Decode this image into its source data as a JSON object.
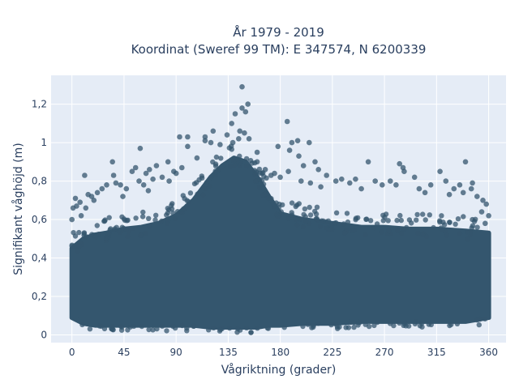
{
  "chart_data": {
    "type": "scatter",
    "title_line1": "År 1979 - 2019",
    "title_line2": "Koordinat (Sweref 99 TM): E 347574, N 6200339",
    "xlabel": "Vågriktning (grader)",
    "ylabel": "Signifikant våghöjd (m)",
    "xlim": [
      -18,
      375
    ],
    "ylim": [
      -0.04,
      1.35
    ],
    "x_ticks": [
      0,
      45,
      90,
      135,
      180,
      225,
      270,
      315,
      360
    ],
    "x_tick_labels": [
      "0",
      "45",
      "90",
      "135",
      "180",
      "225",
      "270",
      "315",
      "360"
    ],
    "y_ticks": [
      0,
      0.2,
      0.4,
      0.6,
      0.8,
      1.0,
      1.2
    ],
    "y_tick_labels": [
      "0",
      "0,2",
      "0,4",
      "0,6",
      "0,8",
      "1",
      "1,2"
    ],
    "grid": true,
    "marker_color": "#34566e",
    "marker_opacity": 0.75,
    "background_color": "#e5ecf6",
    "envelope": {
      "x": [
        0,
        10,
        20,
        30,
        45,
        60,
        75,
        90,
        105,
        120,
        130,
        140,
        150,
        160,
        170,
        180,
        200,
        225,
        250,
        270,
        290,
        315,
        340,
        360
      ],
      "y_min": [
        0.09,
        0.06,
        0.05,
        0.05,
        0.05,
        0.05,
        0.05,
        0.05,
        0.05,
        0.04,
        0.04,
        0.04,
        0.04,
        0.04,
        0.05,
        0.05,
        0.06,
        0.06,
        0.07,
        0.07,
        0.07,
        0.07,
        0.07,
        0.09
      ],
      "y_dense_top": [
        0.45,
        0.5,
        0.52,
        0.53,
        0.55,
        0.56,
        0.58,
        0.62,
        0.7,
        0.82,
        0.88,
        0.92,
        0.9,
        0.82,
        0.72,
        0.63,
        0.6,
        0.58,
        0.56,
        0.56,
        0.55,
        0.55,
        0.54,
        0.53
      ]
    },
    "points": [
      {
        "x": 147,
        "y": 1.29
      },
      {
        "x": 152,
        "y": 1.2
      },
      {
        "x": 147,
        "y": 1.18
      },
      {
        "x": 150,
        "y": 1.16
      },
      {
        "x": 141,
        "y": 1.15
      },
      {
        "x": 138,
        "y": 1.1
      },
      {
        "x": 186,
        "y": 1.11
      },
      {
        "x": 122,
        "y": 1.06
      },
      {
        "x": 145,
        "y": 1.06
      },
      {
        "x": 149,
        "y": 1.05
      },
      {
        "x": 100,
        "y": 1.03
      },
      {
        "x": 115,
        "y": 1.03
      },
      {
        "x": 144,
        "y": 1.02
      },
      {
        "x": 134,
        "y": 1.04
      },
      {
        "x": 139,
        "y": 1.0
      },
      {
        "x": 153,
        "y": 1.02
      },
      {
        "x": 190,
        "y": 1.0
      },
      {
        "x": 205,
        "y": 1.0
      },
      {
        "x": 178,
        "y": 0.98
      },
      {
        "x": 195,
        "y": 1.01
      },
      {
        "x": 115,
        "y": 1.01
      },
      {
        "x": 120,
        "y": 1.0
      },
      {
        "x": 128,
        "y": 0.99
      },
      {
        "x": 93,
        "y": 1.03
      },
      {
        "x": 100,
        "y": 0.98
      },
      {
        "x": 59,
        "y": 0.97
      },
      {
        "x": 160,
        "y": 0.95
      },
      {
        "x": 188,
        "y": 0.96
      },
      {
        "x": 196,
        "y": 0.93
      },
      {
        "x": 210,
        "y": 0.9
      },
      {
        "x": 256,
        "y": 0.9
      },
      {
        "x": 340,
        "y": 0.9
      },
      {
        "x": 35,
        "y": 0.9
      },
      {
        "x": 73,
        "y": 0.88
      },
      {
        "x": 83,
        "y": 0.9
      },
      {
        "x": 108,
        "y": 0.92
      },
      {
        "x": 200,
        "y": 0.88
      },
      {
        "x": 187,
        "y": 0.85
      },
      {
        "x": 175,
        "y": 0.84
      },
      {
        "x": 213,
        "y": 0.86
      },
      {
        "x": 283,
        "y": 0.89
      },
      {
        "x": 286,
        "y": 0.87
      },
      {
        "x": 287,
        "y": 0.85
      },
      {
        "x": 296,
        "y": 0.82
      },
      {
        "x": 318,
        "y": 0.85
      },
      {
        "x": 323,
        "y": 0.8
      },
      {
        "x": 11,
        "y": 0.83
      },
      {
        "x": 36,
        "y": 0.83
      },
      {
        "x": 64,
        "y": 0.84
      },
      {
        "x": 67,
        "y": 0.86
      },
      {
        "x": 55,
        "y": 0.87
      },
      {
        "x": 52,
        "y": 0.85
      },
      {
        "x": 38,
        "y": 0.79
      },
      {
        "x": 26,
        "y": 0.76
      },
      {
        "x": 22,
        "y": 0.74
      },
      {
        "x": 17,
        "y": 0.72
      },
      {
        "x": 3,
        "y": 0.71
      },
      {
        "x": 7,
        "y": 0.69
      },
      {
        "x": 4,
        "y": 0.67
      },
      {
        "x": 14,
        "y": 0.73
      },
      {
        "x": 30,
        "y": 0.78
      },
      {
        "x": 47,
        "y": 0.76
      },
      {
        "x": 58,
        "y": 0.8
      },
      {
        "x": 70,
        "y": 0.81
      },
      {
        "x": 78,
        "y": 0.82
      },
      {
        "x": 88,
        "y": 0.85
      },
      {
        "x": 95,
        "y": 0.87
      },
      {
        "x": 160,
        "y": 0.9
      },
      {
        "x": 167,
        "y": 0.86
      },
      {
        "x": 172,
        "y": 0.83
      },
      {
        "x": 180,
        "y": 0.82
      },
      {
        "x": 220,
        "y": 0.83
      },
      {
        "x": 228,
        "y": 0.8
      },
      {
        "x": 233,
        "y": 0.81
      },
      {
        "x": 240,
        "y": 0.79
      },
      {
        "x": 245,
        "y": 0.81
      },
      {
        "x": 262,
        "y": 0.8
      },
      {
        "x": 268,
        "y": 0.78
      },
      {
        "x": 275,
        "y": 0.8
      },
      {
        "x": 280,
        "y": 0.78
      },
      {
        "x": 300,
        "y": 0.76
      },
      {
        "x": 310,
        "y": 0.78
      },
      {
        "x": 330,
        "y": 0.76
      },
      {
        "x": 335,
        "y": 0.78
      },
      {
        "x": 345,
        "y": 0.76
      },
      {
        "x": 350,
        "y": 0.72
      },
      {
        "x": 355,
        "y": 0.7
      },
      {
        "x": 358,
        "y": 0.68
      },
      {
        "x": 346,
        "y": 0.79
      },
      {
        "x": 338,
        "y": 0.74
      },
      {
        "x": 326,
        "y": 0.73
      },
      {
        "x": 305,
        "y": 0.74
      },
      {
        "x": 250,
        "y": 0.76
      },
      {
        "x": 215,
        "y": 0.77
      },
      {
        "x": 206,
        "y": 0.79
      },
      {
        "x": 198,
        "y": 0.8
      },
      {
        "x": 0,
        "y": 0.6
      },
      {
        "x": 1,
        "y": 0.66
      },
      {
        "x": 8,
        "y": 0.62
      },
      {
        "x": 354,
        "y": 0.64
      },
      {
        "x": 360,
        "y": 0.62
      },
      {
        "x": 357,
        "y": 0.58
      },
      {
        "x": 12,
        "y": 0.66
      },
      {
        "x": 19,
        "y": 0.7
      },
      {
        "x": 44,
        "y": 0.72
      },
      {
        "x": 42,
        "y": 0.78
      },
      {
        "x": 62,
        "y": 0.78
      },
      {
        "x": 66,
        "y": 0.75
      },
      {
        "x": 84,
        "y": 0.8
      },
      {
        "x": 90,
        "y": 0.84
      }
    ]
  }
}
